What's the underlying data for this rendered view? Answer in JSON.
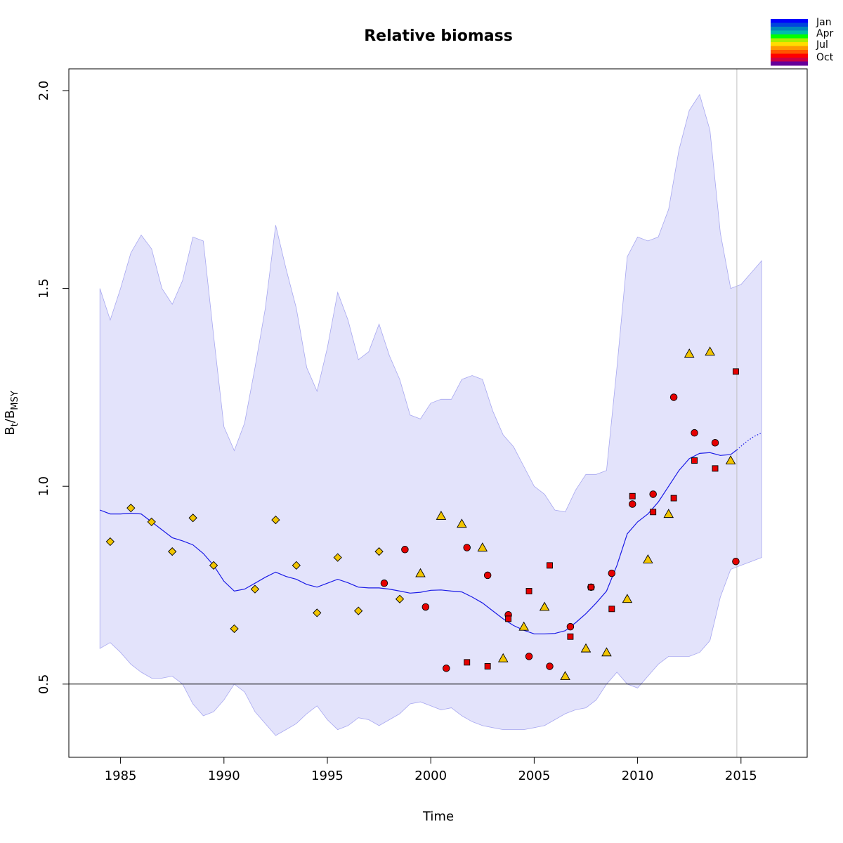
{
  "chart_data": {
    "type": "line",
    "title": "Relative biomass",
    "xlabel": "Time",
    "ylabel": {
      "main": "B",
      "sub1": "t",
      "sep": "/B",
      "sub2": "MSY"
    },
    "xlim": [
      1982.5,
      2018.2
    ],
    "ylim": [
      0.315,
      2.055
    ],
    "x_ticks": [
      1985,
      1990,
      1995,
      2000,
      2005,
      2010,
      2015
    ],
    "x_tick_labels": [
      "1985",
      "1990",
      "1995",
      "2000",
      "2005",
      "2010",
      "2015"
    ],
    "y_ticks": [
      0.5,
      1.0,
      1.5,
      2.0
    ],
    "y_tick_labels": [
      "0.5",
      "1.0",
      "1.5",
      "2.0"
    ],
    "reference_line_y": 0.5,
    "reference_line_x": 2014.8,
    "colors": {
      "band_fill": "#e3e3fb",
      "band_stroke": "#a8a8f0",
      "median_line": "#1a1ae6",
      "reference": "#000000",
      "vline": "#c0c0c0",
      "diamond_fill": "#f2c500",
      "triangle_fill": "#f2c500",
      "circle_fill": "#e60000",
      "square_fill": "#e60000"
    },
    "legend": {
      "position": "top-right",
      "labels": [
        "Jan",
        "Apr",
        "Jul",
        "Oct"
      ],
      "gradient": [
        "#0000ff",
        "#0044dd",
        "#0088bb",
        "#00bbaa",
        "#00ff00",
        "#aaee00",
        "#ffdd00",
        "#ff9900",
        "#ff5500",
        "#ff0000",
        "#cc0044",
        "#660099"
      ]
    },
    "median": {
      "x": [
        1984.0,
        1984.5,
        1985.0,
        1985.5,
        1986.0,
        1986.5,
        1987.0,
        1987.5,
        1988.0,
        1988.5,
        1989.0,
        1989.5,
        1990.0,
        1990.5,
        1991.0,
        1991.5,
        1992.0,
        1992.5,
        1993.0,
        1993.5,
        1994.0,
        1994.5,
        1995.0,
        1995.5,
        1996.0,
        1996.5,
        1997.0,
        1997.5,
        1998.0,
        1998.5,
        1999.0,
        1999.5,
        2000.0,
        2000.5,
        2001.0,
        2001.5,
        2002.0,
        2002.5,
        2003.0,
        2003.5,
        2004.0,
        2004.5,
        2005.0,
        2005.5,
        2006.0,
        2006.5,
        2007.0,
        2007.5,
        2008.0,
        2008.5,
        2009.0,
        2009.5,
        2010.0,
        2010.5,
        2011.0,
        2011.5,
        2012.0,
        2012.5,
        2013.0,
        2013.5,
        2014.0,
        2014.5,
        2014.8
      ],
      "y": [
        0.94,
        0.93,
        0.93,
        0.932,
        0.93,
        0.91,
        0.89,
        0.87,
        0.862,
        0.852,
        0.83,
        0.8,
        0.76,
        0.735,
        0.74,
        0.755,
        0.77,
        0.783,
        0.772,
        0.765,
        0.752,
        0.745,
        0.755,
        0.765,
        0.756,
        0.745,
        0.743,
        0.743,
        0.74,
        0.735,
        0.73,
        0.732,
        0.737,
        0.738,
        0.735,
        0.733,
        0.72,
        0.705,
        0.685,
        0.665,
        0.648,
        0.636,
        0.627,
        0.627,
        0.628,
        0.635,
        0.655,
        0.678,
        0.705,
        0.735,
        0.8,
        0.88,
        0.91,
        0.93,
        0.96,
        1.0,
        1.04,
        1.07,
        1.083,
        1.085,
        1.078,
        1.08,
        1.092
      ]
    },
    "forecast": {
      "x": [
        2014.8,
        2015.2,
        2015.6,
        2016.0
      ],
      "y": [
        1.092,
        1.11,
        1.125,
        1.135
      ]
    },
    "band": {
      "x": [
        1984.0,
        1984.5,
        1985.0,
        1985.5,
        1986.0,
        1986.5,
        1987.0,
        1987.5,
        1988.0,
        1988.5,
        1989.0,
        1989.5,
        1990.0,
        1990.5,
        1991.0,
        1991.5,
        1992.0,
        1992.5,
        1993.0,
        1993.5,
        1994.0,
        1994.5,
        1995.0,
        1995.5,
        1996.0,
        1996.5,
        1997.0,
        1997.5,
        1998.0,
        1998.5,
        1999.0,
        1999.5,
        2000.0,
        2000.5,
        2001.0,
        2001.5,
        2002.0,
        2002.5,
        2003.0,
        2003.5,
        2004.0,
        2004.5,
        2005.0,
        2005.5,
        2006.0,
        2006.5,
        2007.0,
        2007.5,
        2008.0,
        2008.5,
        2009.0,
        2009.5,
        2010.0,
        2010.5,
        2011.0,
        2011.5,
        2012.0,
        2012.5,
        2013.0,
        2013.5,
        2014.0,
        2014.5,
        2015.0,
        2015.5,
        2016.0
      ],
      "upper": [
        1.5,
        1.42,
        1.5,
        1.59,
        1.635,
        1.6,
        1.5,
        1.46,
        1.52,
        1.63,
        1.62,
        1.38,
        1.15,
        1.09,
        1.16,
        1.3,
        1.45,
        1.66,
        1.55,
        1.45,
        1.3,
        1.24,
        1.35,
        1.49,
        1.42,
        1.32,
        1.34,
        1.41,
        1.33,
        1.27,
        1.18,
        1.17,
        1.21,
        1.22,
        1.22,
        1.27,
        1.28,
        1.27,
        1.19,
        1.13,
        1.1,
        1.05,
        1.0,
        0.98,
        0.94,
        0.935,
        0.99,
        1.03,
        1.03,
        1.04,
        1.3,
        1.58,
        1.63,
        1.62,
        1.63,
        1.7,
        1.85,
        1.95,
        1.99,
        1.9,
        1.64,
        1.5,
        1.51,
        1.54,
        1.57
      ],
      "lower": [
        0.59,
        0.605,
        0.58,
        0.55,
        0.53,
        0.515,
        0.515,
        0.52,
        0.5,
        0.45,
        0.42,
        0.43,
        0.46,
        0.5,
        0.48,
        0.43,
        0.4,
        0.37,
        0.385,
        0.4,
        0.425,
        0.445,
        0.41,
        0.385,
        0.395,
        0.415,
        0.41,
        0.395,
        0.41,
        0.425,
        0.45,
        0.455,
        0.445,
        0.435,
        0.44,
        0.42,
        0.405,
        0.395,
        0.39,
        0.385,
        0.385,
        0.385,
        0.39,
        0.395,
        0.41,
        0.425,
        0.435,
        0.44,
        0.46,
        0.5,
        0.53,
        0.5,
        0.49,
        0.52,
        0.55,
        0.57,
        0.57,
        0.57,
        0.58,
        0.61,
        0.72,
        0.79,
        0.8,
        0.81,
        0.82
      ]
    },
    "observations": [
      {
        "name": "diamond-series",
        "marker": "diamond",
        "x": [
          1984.5,
          1985.5,
          1986.5,
          1987.5,
          1988.5,
          1989.5,
          1990.5,
          1991.5,
          1992.5,
          1993.5,
          1994.5,
          1995.5,
          1996.5,
          1997.5,
          1998.5
        ],
        "y": [
          0.86,
          0.945,
          0.91,
          0.835,
          0.92,
          0.8,
          0.64,
          0.74,
          0.915,
          0.8,
          0.68,
          0.82,
          0.685,
          0.835,
          0.715
        ]
      },
      {
        "name": "triangle-series",
        "marker": "triangle",
        "x": [
          1999.5,
          2000.5,
          2001.5,
          2002.5,
          2003.5,
          2004.5,
          2005.5,
          2006.5,
          2007.5,
          2008.5,
          2009.5,
          2010.5,
          2011.5,
          2012.5,
          2013.5,
          2014.5
        ],
        "y": [
          0.78,
          0.925,
          0.905,
          0.845,
          0.565,
          0.645,
          0.695,
          0.52,
          0.59,
          0.58,
          0.715,
          0.815,
          0.93,
          1.335,
          1.34,
          1.065
        ]
      },
      {
        "name": "circle-series",
        "marker": "circle",
        "x": [
          1997.75,
          1998.75,
          1999.75,
          2000.75,
          2001.75,
          2002.75,
          2003.75,
          2004.75,
          2005.75,
          2006.75,
          2007.75,
          2008.75,
          2009.75,
          2010.75,
          2011.75,
          2012.75,
          2013.75,
          2014.75
        ],
        "y": [
          0.755,
          0.84,
          0.695,
          0.54,
          0.845,
          0.775,
          0.675,
          0.57,
          0.545,
          0.645,
          0.745,
          0.78,
          0.955,
          0.98,
          1.225,
          1.135,
          1.11,
          0.81
        ]
      },
      {
        "name": "square-series",
        "marker": "square",
        "x": [
          2001.75,
          2002.75,
          2003.75,
          2004.75,
          2005.75,
          2006.75,
          2007.75,
          2008.75,
          2009.75,
          2010.75,
          2011.75,
          2012.75,
          2013.75,
          2014.75
        ],
        "y": [
          0.555,
          0.545,
          0.665,
          0.735,
          0.8,
          0.62,
          0.745,
          0.69,
          0.975,
          0.935,
          0.97,
          1.065,
          1.045,
          1.29
        ]
      }
    ]
  }
}
